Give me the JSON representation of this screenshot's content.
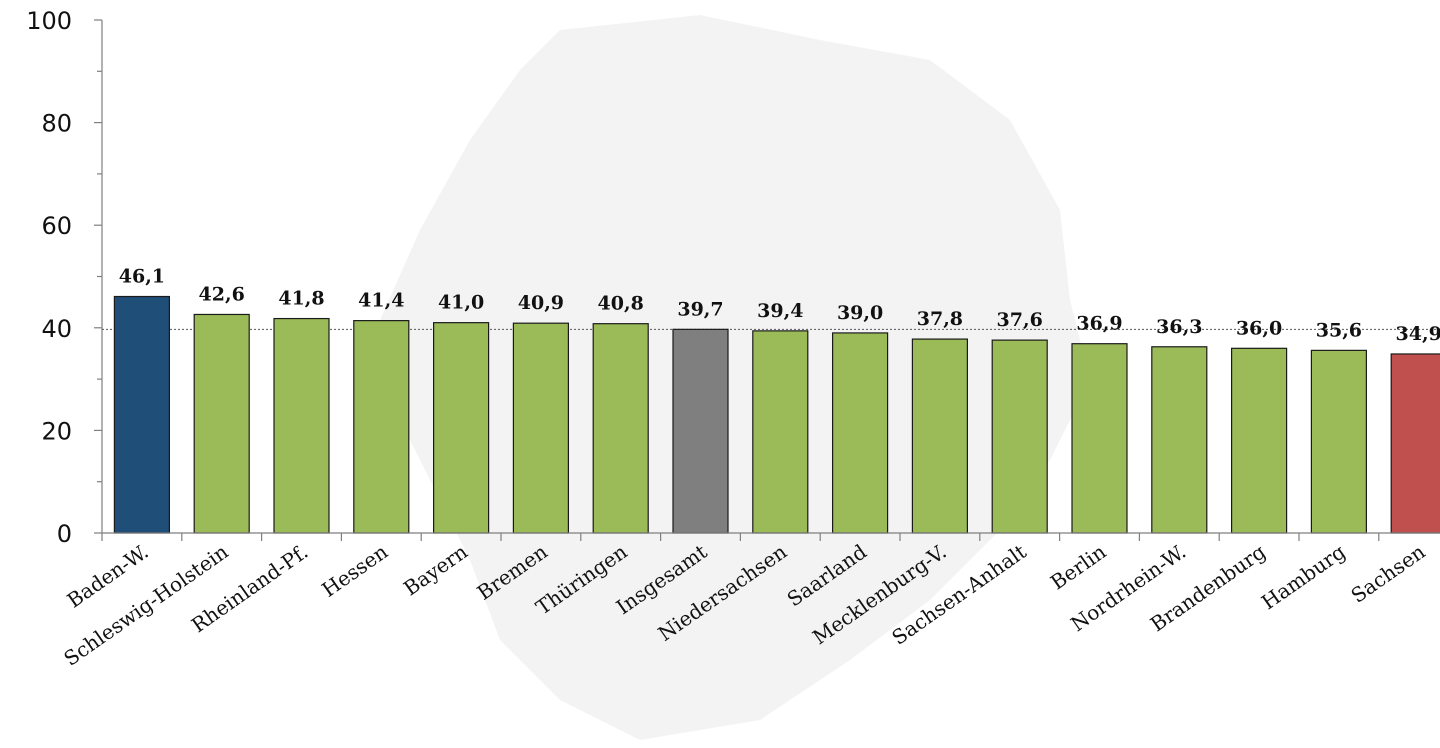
{
  "chart_data": {
    "type": "bar",
    "title": "",
    "xlabel": "",
    "ylabel": "",
    "ylim": [
      0,
      100
    ],
    "yticks": [
      0,
      20,
      40,
      60,
      80,
      100
    ],
    "ytick_labels": [
      "0",
      "20",
      "40",
      "60",
      "80",
      "100"
    ],
    "grid": false,
    "reference_line": {
      "value": 39.7,
      "style": "dotted"
    },
    "categories": [
      "Baden-W.",
      "Schleswig-Holstein",
      "Rheinland-Pf.",
      "Hessen",
      "Bayern",
      "Bremen",
      "Thüringen",
      "Insgesamt",
      "Niedersachsen",
      "Saarland",
      "Mecklenburg-V.",
      "Sachsen-Anhalt",
      "Berlin",
      "Nordrhein-W.",
      "Brandenburg",
      "Hamburg",
      "Sachsen"
    ],
    "values": [
      46.1,
      42.6,
      41.8,
      41.4,
      41.0,
      40.9,
      40.8,
      39.7,
      39.4,
      39.0,
      37.8,
      37.6,
      36.9,
      36.3,
      36.0,
      35.6,
      34.9
    ],
    "value_labels": [
      "46,1",
      "42,6",
      "41,8",
      "41,4",
      "41,0",
      "40,9",
      "40,8",
      "39,7",
      "39,4",
      "39,0",
      "37,8",
      "37,6",
      "36,9",
      "36,3",
      "36,0",
      "35,6",
      "34,9"
    ],
    "bar_colors": [
      "#1f4e79",
      "#9bbb59",
      "#9bbb59",
      "#9bbb59",
      "#9bbb59",
      "#9bbb59",
      "#9bbb59",
      "#7f7f7f",
      "#9bbb59",
      "#9bbb59",
      "#9bbb59",
      "#9bbb59",
      "#9bbb59",
      "#9bbb59",
      "#9bbb59",
      "#9bbb59",
      "#c0504d"
    ]
  }
}
